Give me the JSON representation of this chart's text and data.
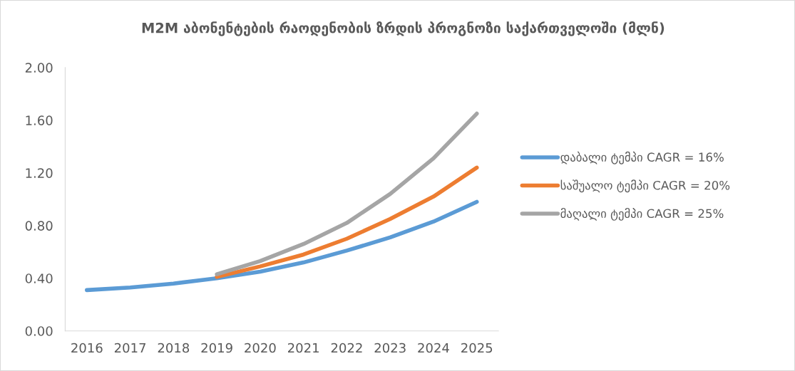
{
  "chart_data": {
    "type": "line",
    "title": "M2M აბონენტების რაოდენობის ზრდის პროგნოზი საქართველოში (მლნ)",
    "categories": [
      "2016",
      "2017",
      "2018",
      "2019",
      "2020",
      "2021",
      "2022",
      "2023",
      "2024",
      "2025"
    ],
    "series": [
      {
        "name": "დაბალი ტემპი CAGR = 16%",
        "color": "#5b9bd5",
        "values": [
          0.31,
          0.33,
          0.36,
          0.4,
          0.45,
          0.52,
          0.61,
          0.71,
          0.83,
          0.98
        ]
      },
      {
        "name": "საშუალო ტემპი CAGR = 20%",
        "color": "#ed7d31",
        "values": [
          null,
          null,
          null,
          0.41,
          0.49,
          0.58,
          0.7,
          0.85,
          1.02,
          1.24
        ]
      },
      {
        "name": "მაღალი ტემპი CAGR = 25%",
        "color": "#a5a5a5",
        "values": [
          null,
          null,
          null,
          0.43,
          0.53,
          0.66,
          0.82,
          1.04,
          1.31,
          1.65
        ]
      }
    ],
    "ylim": [
      0,
      2.0
    ],
    "yticks": [
      {
        "value": 0,
        "label": "0.00"
      },
      {
        "value": 0.4,
        "label": "0.40"
      },
      {
        "value": 0.8,
        "label": "0.80"
      },
      {
        "value": 1.2,
        "label": "1.20"
      },
      {
        "value": 1.6,
        "label": "1.60"
      },
      {
        "value": 2.0,
        "label": "2.00"
      }
    ],
    "grid": false,
    "legend": "right",
    "marker": "none",
    "line_style": "solid"
  }
}
